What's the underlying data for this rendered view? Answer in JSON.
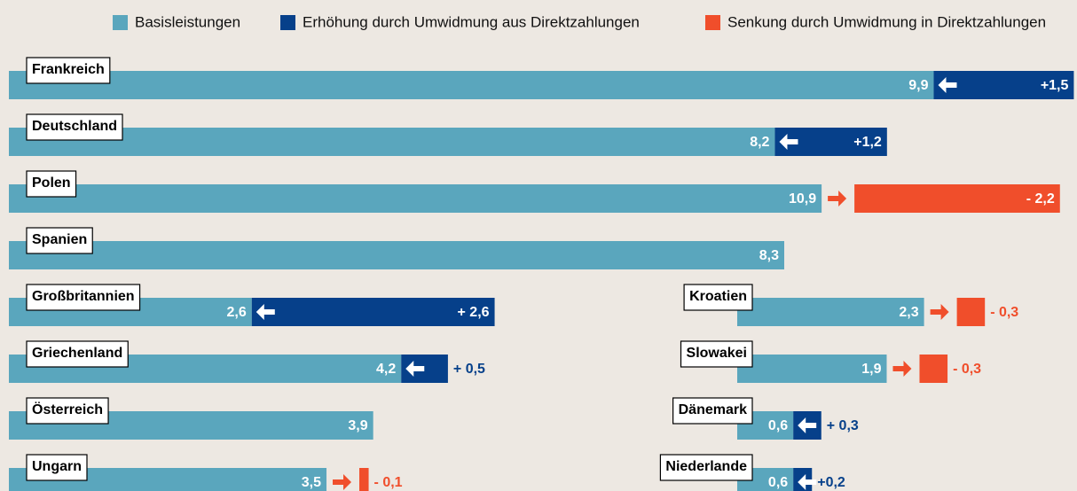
{
  "chart_data": {
    "type": "bar",
    "categories": [
      "Frankreich",
      "Deutschland",
      "Polen",
      "Spanien",
      "Großbritannien",
      "Griechenland",
      "Österreich",
      "Ungarn",
      "Kroatien",
      "Slowakei",
      "Dänemark",
      "Niederlande"
    ],
    "series": [
      {
        "name": "Basisleistungen",
        "color": "#5aa6bd",
        "values": [
          9.9,
          8.2,
          10.9,
          8.3,
          2.6,
          4.2,
          3.9,
          3.5,
          2.3,
          1.9,
          0.6,
          0.6
        ],
        "value_labels": [
          "9,9",
          "8,2",
          "10,9",
          "8,3",
          "2,6",
          "4,2",
          "3,9",
          "3,5",
          "2,3",
          "1,9",
          "0,6",
          "0,6"
        ]
      },
      {
        "name": "Erhöhung durch Umwidmung aus Direktzahlungen",
        "color": "#06408a",
        "values": [
          1.5,
          1.2,
          null,
          null,
          2.6,
          0.5,
          null,
          null,
          null,
          null,
          0.3,
          0.2
        ],
        "value_labels": [
          "+1,5",
          "+1,2",
          null,
          null,
          "+ 2,6",
          "+ 0,5",
          null,
          null,
          null,
          null,
          "+ 0,3",
          "+0,2"
        ]
      },
      {
        "name": "Senkung durch Umwidmung in Direktzahlungen",
        "color": "#f04e2b",
        "values": [
          null,
          null,
          -2.2,
          null,
          null,
          null,
          null,
          -0.1,
          -0.3,
          -0.3,
          null,
          null
        ],
        "value_labels": [
          null,
          null,
          "- 2,2",
          null,
          null,
          null,
          null,
          "- 0,1",
          "- 0,3",
          "- 0,3",
          null,
          null
        ]
      }
    ]
  }
}
